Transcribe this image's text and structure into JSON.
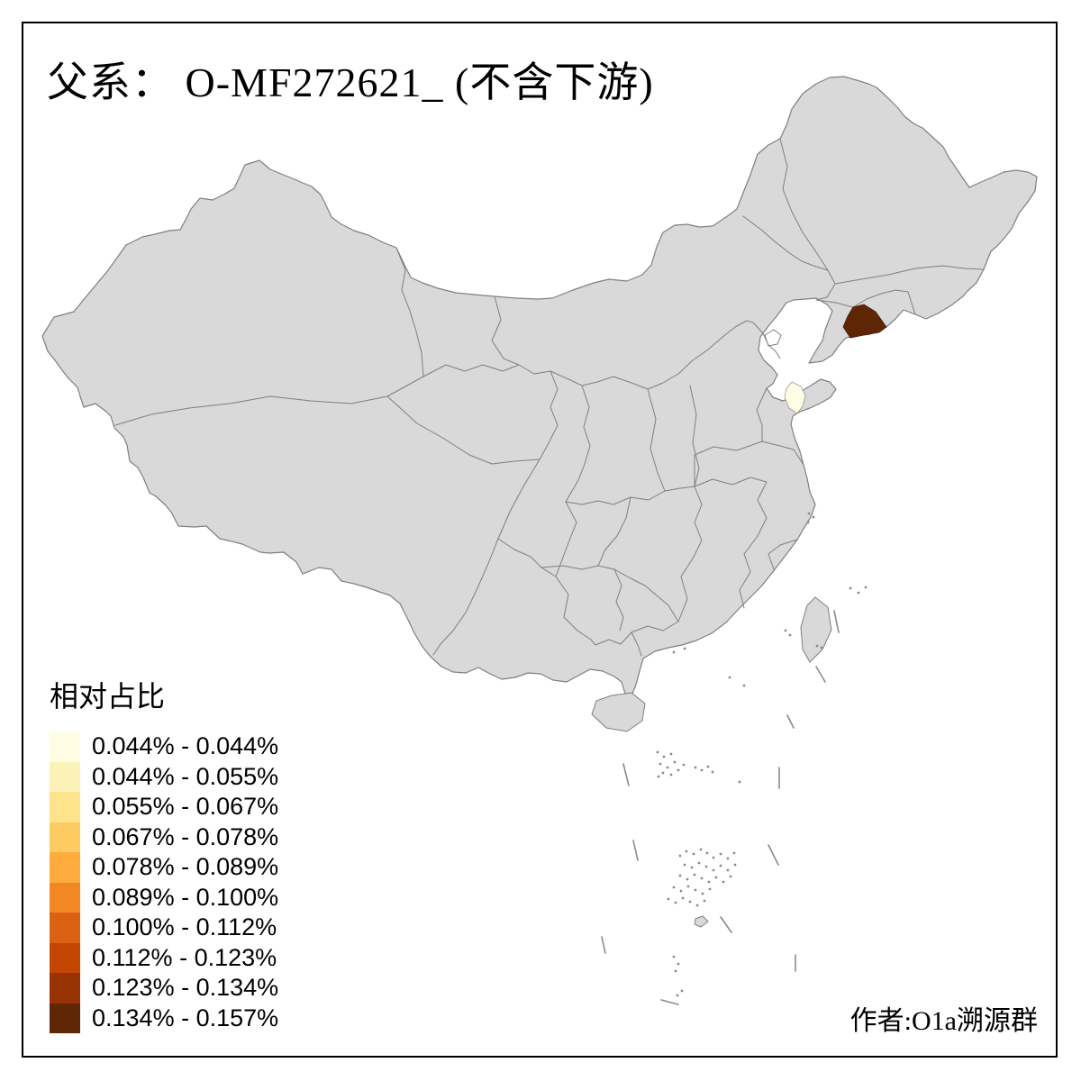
{
  "title": "父系： O-MF272621_ (不含下游)",
  "legend": {
    "title": "相对占比",
    "items": [
      {
        "range": "0.044% - 0.044%",
        "color": "#FFFDE3"
      },
      {
        "range": "0.044% - 0.055%",
        "color": "#FBF2B8"
      },
      {
        "range": "0.055% - 0.067%",
        "color": "#FDE38B"
      },
      {
        "range": "0.067% - 0.078%",
        "color": "#FDCB62"
      },
      {
        "range": "0.078% - 0.089%",
        "color": "#FDAC3D"
      },
      {
        "range": "0.089% - 0.100%",
        "color": "#F28723"
      },
      {
        "range": "0.100% - 0.112%",
        "color": "#DB6212"
      },
      {
        "range": "0.112% - 0.123%",
        "color": "#C34502"
      },
      {
        "range": "0.123% - 0.134%",
        "color": "#963203"
      },
      {
        "range": "0.134% - 0.157%",
        "color": "#5F2606"
      }
    ]
  },
  "author": "作者:O1a溯源群",
  "map": {
    "colors": {
      "fill": "#D9D9D9",
      "stroke": "#7F7F7F",
      "background": "#FFFFFF",
      "frame": "#000000"
    },
    "highlighted_regions": [
      {
        "name": "liaoning-dandong-area",
        "value_class": "0.134% - 0.157%",
        "color": "#5F2606"
      },
      {
        "name": "shandong-qingdao-area",
        "value_class": "0.044% - 0.044%",
        "color": "#FFFDE6"
      }
    ]
  }
}
